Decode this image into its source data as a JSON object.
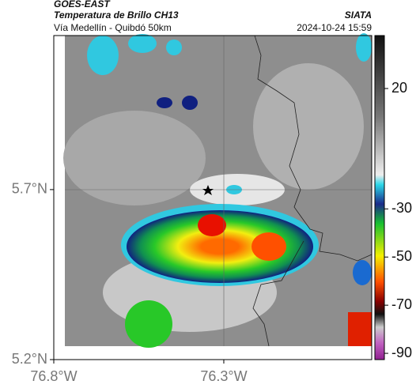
{
  "header": {
    "satellite": "GOES-EAST",
    "product": "Temperatura de Brillo CH13",
    "route": "Vía Medellín - Quibdó 50km",
    "source": "SIATA",
    "timestamp": "2024-10-24 15:59"
  },
  "map": {
    "lonlim": [
      -76.8,
      -75.865
    ],
    "latlim": [
      5.2,
      6.153
    ],
    "lonticks": [
      {
        "value": -76.8,
        "label": "76.8°W"
      },
      {
        "value": -76.3,
        "label": "76.3°W"
      }
    ],
    "latticks": [
      {
        "value": 5.7,
        "label": "5.7°N"
      },
      {
        "value": 5.2,
        "label": "5.2°N"
      }
    ]
  },
  "colorbar": {
    "lim": [
      42,
      -92.6
    ],
    "ticks": [
      20,
      -30,
      -50,
      -70,
      -90
    ]
  }
}
